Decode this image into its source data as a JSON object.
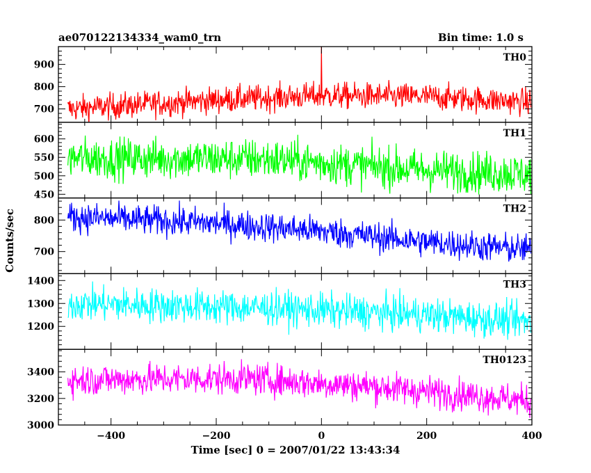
{
  "chart_data": {
    "type": "line",
    "title": "ae070122134334_wam0_trn",
    "bin_time": "Bin time: 1.0 s",
    "xlabel": "Time [sec] 0 = 2007/01/22 13:43:34",
    "ylabel": "Counts/sec",
    "xlim": [
      -500,
      400
    ],
    "x_ticks": [
      -400,
      -200,
      0,
      200,
      400
    ],
    "x_tick_labels": [
      "−400",
      "−200",
      "0",
      "200",
      "400"
    ],
    "panels": [
      {
        "name": "TH0",
        "color": "#ff0000",
        "ylim": [
          640,
          980
        ],
        "y_ticks": [
          700,
          800,
          900
        ],
        "trend": [
          [
            -480,
            700
          ],
          [
            -200,
            740
          ],
          [
            0,
            760
          ],
          [
            200,
            755
          ],
          [
            400,
            730
          ]
        ],
        "noise": 30,
        "spike": {
          "x": 0,
          "y": 980
        }
      },
      {
        "name": "TH1",
        "color": "#00ff00",
        "ylim": [
          440,
          645
        ],
        "y_ticks": [
          450,
          500,
          550,
          600
        ],
        "trend": [
          [
            -480,
            548
          ],
          [
            -100,
            545
          ],
          [
            200,
            515
          ],
          [
            400,
            505
          ]
        ],
        "noise": 28
      },
      {
        "name": "TH2",
        "color": "#0000ff",
        "ylim": [
          630,
          870
        ],
        "y_ticks": [
          700,
          800
        ],
        "trend": [
          [
            -480,
            810
          ],
          [
            -200,
            790
          ],
          [
            0,
            765
          ],
          [
            200,
            730
          ],
          [
            400,
            705
          ]
        ],
        "noise": 24
      },
      {
        "name": "TH3",
        "color": "#00ffff",
        "ylim": [
          1100,
          1430
        ],
        "y_ticks": [
          1200,
          1300,
          1400
        ],
        "trend": [
          [
            -480,
            1300
          ],
          [
            -100,
            1280
          ],
          [
            200,
            1250
          ],
          [
            400,
            1220
          ]
        ],
        "noise": 38
      },
      {
        "name": "TH0123",
        "color": "#ff00ff",
        "ylim": [
          3000,
          3570
        ],
        "y_ticks": [
          3000,
          3200,
          3400
        ],
        "y_tick_labels": [
          "3000",
          "3200",
          "3400"
        ],
        "trend": [
          [
            -480,
            3340
          ],
          [
            -150,
            3350
          ],
          [
            100,
            3290
          ],
          [
            400,
            3180
          ]
        ],
        "noise": 60
      }
    ]
  }
}
